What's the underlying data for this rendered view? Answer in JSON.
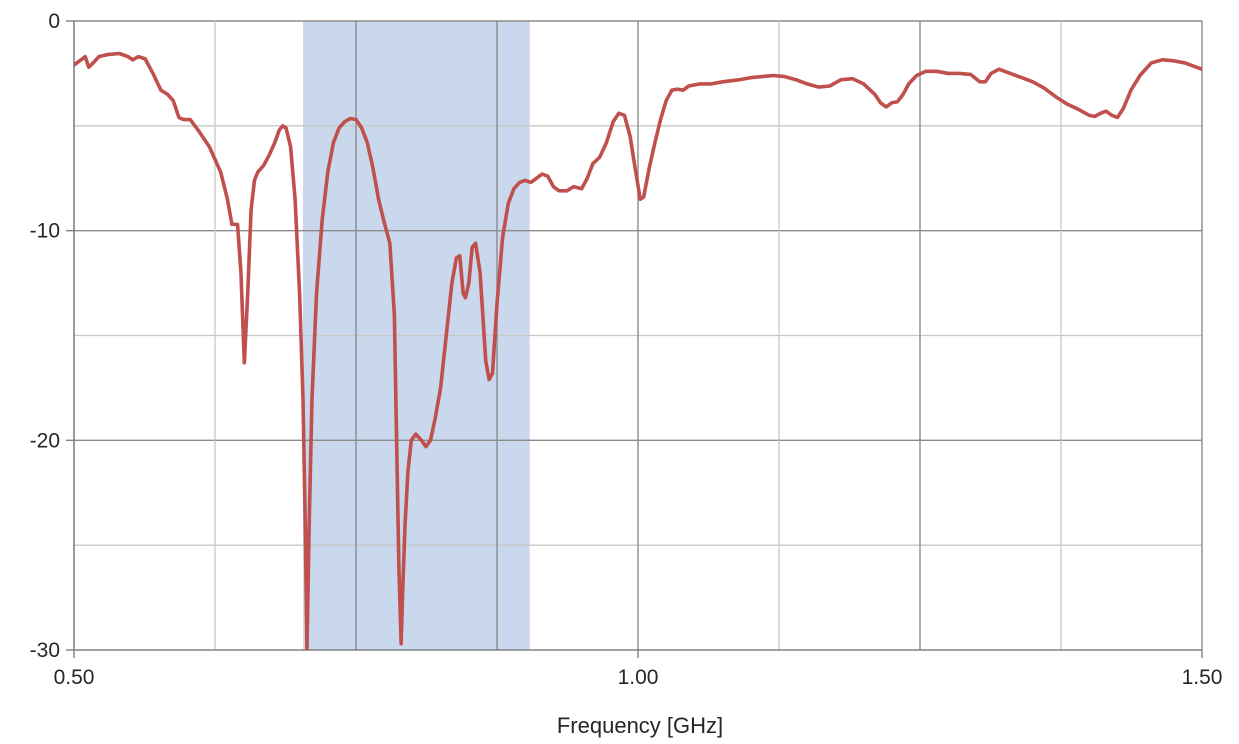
{
  "chart_data": {
    "type": "line",
    "title": "",
    "xlabel": "Frequency [GHz]",
    "ylabel": "",
    "xlim": [
      0.5,
      1.5
    ],
    "ylim": [
      -30,
      0
    ],
    "x_major_ticks": [
      0.5,
      1.0,
      1.5
    ],
    "x_major_tick_labels": [
      "0.50",
      "1.00",
      "1.50"
    ],
    "x_minor_gridlines": [
      0.625,
      0.75,
      0.875,
      1.125,
      1.25,
      1.375
    ],
    "x_strong_gridlines": [
      0.75,
      0.875,
      1.25
    ],
    "y_major_ticks": [
      0,
      -10,
      -20,
      -30
    ],
    "y_major_tick_labels": [
      "0",
      "-10",
      "-20",
      "-30"
    ],
    "y_minor_gridlines": [
      -5,
      -15,
      -25
    ],
    "grid": true,
    "legend": "none",
    "highlight_band": {
      "x_from": 0.703,
      "x_to": 0.904,
      "color": "#c9d8ec"
    },
    "series": [
      {
        "color": "#c0504d",
        "points": [
          [
            0.5,
            -2.1
          ],
          [
            0.505,
            -1.9
          ],
          [
            0.51,
            -1.7
          ],
          [
            0.513,
            -2.2
          ],
          [
            0.517,
            -2.0
          ],
          [
            0.522,
            -1.7
          ],
          [
            0.53,
            -1.6
          ],
          [
            0.54,
            -1.55
          ],
          [
            0.548,
            -1.7
          ],
          [
            0.552,
            -1.85
          ],
          [
            0.557,
            -1.7
          ],
          [
            0.563,
            -1.8
          ],
          [
            0.57,
            -2.5
          ],
          [
            0.577,
            -3.3
          ],
          [
            0.583,
            -3.5
          ],
          [
            0.588,
            -3.8
          ],
          [
            0.593,
            -4.6
          ],
          [
            0.597,
            -4.7
          ],
          [
            0.603,
            -4.7
          ],
          [
            0.61,
            -5.2
          ],
          [
            0.62,
            -6.0
          ],
          [
            0.63,
            -7.2
          ],
          [
            0.636,
            -8.5
          ],
          [
            0.64,
            -9.7
          ],
          [
            0.645,
            -9.7
          ],
          [
            0.648,
            -12.0
          ],
          [
            0.651,
            -16.3
          ],
          [
            0.654,
            -13.0
          ],
          [
            0.657,
            -9.0
          ],
          [
            0.66,
            -7.6
          ],
          [
            0.663,
            -7.2
          ],
          [
            0.668,
            -6.9
          ],
          [
            0.673,
            -6.4
          ],
          [
            0.678,
            -5.8
          ],
          [
            0.682,
            -5.2
          ],
          [
            0.685,
            -5.0
          ],
          [
            0.688,
            -5.1
          ],
          [
            0.692,
            -6.0
          ],
          [
            0.696,
            -8.5
          ],
          [
            0.7,
            -13.0
          ],
          [
            0.703,
            -18.0
          ],
          [
            0.705,
            -24.0
          ],
          [
            0.7065,
            -30.0
          ],
          [
            0.7085,
            -24.0
          ],
          [
            0.711,
            -18.0
          ],
          [
            0.715,
            -13.0
          ],
          [
            0.72,
            -9.5
          ],
          [
            0.725,
            -7.2
          ],
          [
            0.73,
            -5.8
          ],
          [
            0.735,
            -5.1
          ],
          [
            0.74,
            -4.8
          ],
          [
            0.745,
            -4.65
          ],
          [
            0.75,
            -4.7
          ],
          [
            0.755,
            -5.1
          ],
          [
            0.76,
            -5.8
          ],
          [
            0.765,
            -7.0
          ],
          [
            0.77,
            -8.5
          ],
          [
            0.775,
            -9.6
          ],
          [
            0.78,
            -10.6
          ],
          [
            0.784,
            -14.0
          ],
          [
            0.786,
            -20.0
          ],
          [
            0.788,
            -26.0
          ],
          [
            0.79,
            -29.7
          ],
          [
            0.7915,
            -27.0
          ],
          [
            0.7935,
            -24.0
          ],
          [
            0.796,
            -21.5
          ],
          [
            0.799,
            -20.0
          ],
          [
            0.803,
            -19.7
          ],
          [
            0.808,
            -20.0
          ],
          [
            0.812,
            -20.3
          ],
          [
            0.816,
            -20.0
          ],
          [
            0.82,
            -19.0
          ],
          [
            0.825,
            -17.5
          ],
          [
            0.83,
            -15.0
          ],
          [
            0.835,
            -12.5
          ],
          [
            0.839,
            -11.3
          ],
          [
            0.842,
            -11.2
          ],
          [
            0.845,
            -13.0
          ],
          [
            0.847,
            -13.2
          ],
          [
            0.85,
            -12.5
          ],
          [
            0.853,
            -10.8
          ],
          [
            0.856,
            -10.6
          ],
          [
            0.86,
            -12.0
          ],
          [
            0.865,
            -16.2
          ],
          [
            0.868,
            -17.1
          ],
          [
            0.871,
            -16.8
          ],
          [
            0.875,
            -13.5
          ],
          [
            0.88,
            -10.3
          ],
          [
            0.885,
            -8.7
          ],
          [
            0.89,
            -8.0
          ],
          [
            0.895,
            -7.7
          ],
          [
            0.9,
            -7.6
          ],
          [
            0.905,
            -7.7
          ],
          [
            0.91,
            -7.5
          ],
          [
            0.915,
            -7.3
          ],
          [
            0.92,
            -7.4
          ],
          [
            0.925,
            -7.9
          ],
          [
            0.93,
            -8.1
          ],
          [
            0.937,
            -8.1
          ],
          [
            0.943,
            -7.9
          ],
          [
            0.95,
            -8.0
          ],
          [
            0.955,
            -7.5
          ],
          [
            0.96,
            -6.8
          ],
          [
            0.966,
            -6.5
          ],
          [
            0.972,
            -5.8
          ],
          [
            0.978,
            -4.8
          ],
          [
            0.983,
            -4.4
          ],
          [
            0.988,
            -4.5
          ],
          [
            0.993,
            -5.5
          ],
          [
            0.998,
            -7.2
          ],
          [
            1.002,
            -8.5
          ],
          [
            1.005,
            -8.4
          ],
          [
            1.01,
            -7.0
          ],
          [
            1.015,
            -5.8
          ],
          [
            1.02,
            -4.7
          ],
          [
            1.025,
            -3.8
          ],
          [
            1.03,
            -3.3
          ],
          [
            1.035,
            -3.25
          ],
          [
            1.04,
            -3.3
          ],
          [
            1.045,
            -3.1
          ],
          [
            1.055,
            -3.0
          ],
          [
            1.065,
            -3.0
          ],
          [
            1.075,
            -2.9
          ],
          [
            1.09,
            -2.8
          ],
          [
            1.1,
            -2.7
          ],
          [
            1.11,
            -2.65
          ],
          [
            1.12,
            -2.6
          ],
          [
            1.13,
            -2.65
          ],
          [
            1.14,
            -2.8
          ],
          [
            1.15,
            -3.0
          ],
          [
            1.16,
            -3.15
          ],
          [
            1.17,
            -3.1
          ],
          [
            1.18,
            -2.8
          ],
          [
            1.19,
            -2.75
          ],
          [
            1.2,
            -3.0
          ],
          [
            1.21,
            -3.5
          ],
          [
            1.215,
            -3.9
          ],
          [
            1.22,
            -4.1
          ],
          [
            1.225,
            -3.9
          ],
          [
            1.23,
            -3.85
          ],
          [
            1.235,
            -3.5
          ],
          [
            1.24,
            -3.0
          ],
          [
            1.247,
            -2.6
          ],
          [
            1.255,
            -2.4
          ],
          [
            1.265,
            -2.4
          ],
          [
            1.275,
            -2.5
          ],
          [
            1.285,
            -2.5
          ],
          [
            1.295,
            -2.55
          ],
          [
            1.303,
            -2.9
          ],
          [
            1.308,
            -2.9
          ],
          [
            1.313,
            -2.5
          ],
          [
            1.32,
            -2.3
          ],
          [
            1.33,
            -2.5
          ],
          [
            1.34,
            -2.7
          ],
          [
            1.35,
            -2.9
          ],
          [
            1.36,
            -3.2
          ],
          [
            1.37,
            -3.6
          ],
          [
            1.38,
            -3.95
          ],
          [
            1.39,
            -4.2
          ],
          [
            1.4,
            -4.5
          ],
          [
            1.405,
            -4.55
          ],
          [
            1.41,
            -4.4
          ],
          [
            1.415,
            -4.3
          ],
          [
            1.42,
            -4.5
          ],
          [
            1.425,
            -4.6
          ],
          [
            1.43,
            -4.2
          ],
          [
            1.437,
            -3.3
          ],
          [
            1.445,
            -2.6
          ],
          [
            1.455,
            -2.0
          ],
          [
            1.465,
            -1.85
          ],
          [
            1.475,
            -1.9
          ],
          [
            1.485,
            -2.0
          ],
          [
            1.495,
            -2.2
          ],
          [
            1.505,
            -2.4
          ],
          [
            1.515,
            -2.65
          ],
          [
            1.52,
            -2.8
          ]
        ]
      }
    ]
  }
}
